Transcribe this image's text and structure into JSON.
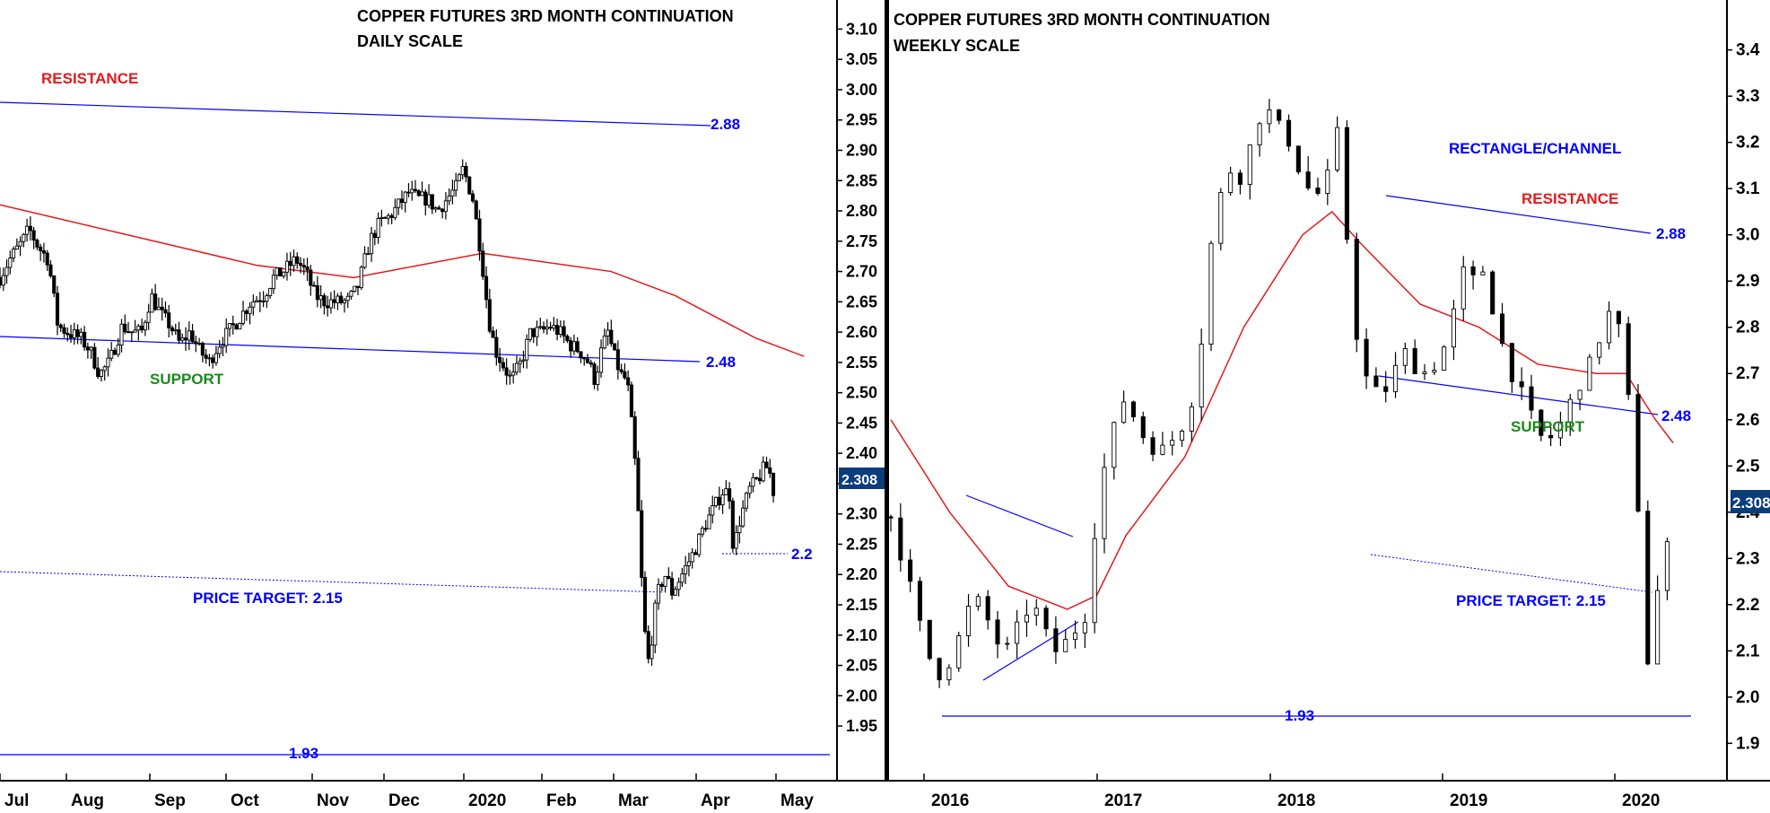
{
  "colors": {
    "up": "#000000",
    "down": "#000000",
    "ma": "#e41a1c",
    "channel": "#0000ff",
    "support": "#1a8a1a",
    "resistance": "#e41a1c",
    "badge": "#0b3d7a"
  },
  "chart_data": [
    {
      "type": "candlestick",
      "title": "COPPER FUTURES 3RD MONTH CONTINUATION",
      "subtitle": "DAILY SCALE",
      "ylim": [
        1.91,
        3.12
      ],
      "y_ticks": [
        "3.10",
        "3.05",
        "3.00",
        "2.95",
        "2.90",
        "2.85",
        "2.80",
        "2.75",
        "2.70",
        "2.65",
        "2.60",
        "2.55",
        "2.50",
        "2.45",
        "2.40",
        "2.35",
        "2.30",
        "2.25",
        "2.20",
        "2.15",
        "2.10",
        "2.05",
        "2.00",
        "1.95"
      ],
      "x_ticks": [
        "Jul",
        "Aug",
        "Sep",
        "Oct",
        "Nov",
        "Dec",
        "2020",
        "Feb",
        "Mar",
        "Apr",
        "May"
      ],
      "last_price": "2.308",
      "price_path": [
        [
          0,
          2.69
        ],
        [
          3,
          2.72
        ],
        [
          7,
          2.75
        ],
        [
          9,
          2.77
        ],
        [
          12,
          2.74
        ],
        [
          15,
          2.72
        ],
        [
          18,
          2.61
        ],
        [
          21,
          2.6
        ],
        [
          25,
          2.59
        ],
        [
          28,
          2.57
        ],
        [
          31,
          2.53
        ],
        [
          34,
          2.55
        ],
        [
          38,
          2.61
        ],
        [
          41,
          2.6
        ],
        [
          44,
          2.6
        ],
        [
          47,
          2.66
        ],
        [
          50,
          2.63
        ],
        [
          53,
          2.61
        ],
        [
          56,
          2.58
        ],
        [
          59,
          2.6
        ],
        [
          62,
          2.57
        ],
        [
          65,
          2.55
        ],
        [
          68,
          2.58
        ],
        [
          71,
          2.6
        ],
        [
          74,
          2.62
        ],
        [
          78,
          2.65
        ],
        [
          82,
          2.66
        ],
        [
          85,
          2.69
        ],
        [
          88,
          2.7
        ],
        [
          92,
          2.72
        ],
        [
          95,
          2.7
        ],
        [
          98,
          2.66
        ],
        [
          101,
          2.65
        ],
        [
          104,
          2.65
        ],
        [
          108,
          2.65
        ],
        [
          111,
          2.67
        ],
        [
          113,
          2.71
        ],
        [
          115,
          2.75
        ],
        [
          118,
          2.78
        ],
        [
          121,
          2.79
        ],
        [
          124,
          2.81
        ],
        [
          127,
          2.83
        ],
        [
          130,
          2.82
        ],
        [
          133,
          2.82
        ],
        [
          136,
          2.8
        ],
        [
          139,
          2.82
        ],
        [
          142,
          2.84
        ],
        [
          144,
          2.87
        ],
        [
          147,
          2.82
        ],
        [
          149,
          2.75
        ],
        [
          150,
          2.71
        ],
        [
          152,
          2.62
        ],
        [
          154,
          2.57
        ],
        [
          156,
          2.55
        ],
        [
          159,
          2.52
        ],
        [
          162,
          2.55
        ],
        [
          165,
          2.6
        ],
        [
          168,
          2.6
        ],
        [
          171,
          2.61
        ],
        [
          174,
          2.6
        ],
        [
          177,
          2.58
        ],
        [
          180,
          2.57
        ],
        [
          183,
          2.55
        ],
        [
          185,
          2.52
        ],
        [
          187,
          2.57
        ],
        [
          189,
          2.6
        ],
        [
          191,
          2.56
        ],
        [
          193,
          2.53
        ],
        [
          195,
          2.52
        ],
        [
          196,
          2.47
        ],
        [
          198,
          2.35
        ],
        [
          199,
          2.24
        ],
        [
          200,
          2.14
        ],
        [
          201,
          2.07
        ],
        [
          202,
          2.05
        ],
        [
          203,
          2.12
        ],
        [
          205,
          2.18
        ],
        [
          207,
          2.2
        ],
        [
          209,
          2.17
        ],
        [
          211,
          2.19
        ],
        [
          213,
          2.21
        ],
        [
          216,
          2.24
        ],
        [
          219,
          2.28
        ],
        [
          222,
          2.31
        ],
        [
          225,
          2.34
        ],
        [
          227,
          2.33
        ],
        [
          228,
          2.24
        ],
        [
          230,
          2.29
        ],
        [
          233,
          2.34
        ],
        [
          236,
          2.36
        ],
        [
          238,
          2.38
        ],
        [
          240,
          2.36
        ],
        [
          241,
          2.31
        ]
      ],
      "ma_path": [
        [
          0,
          2.81
        ],
        [
          40,
          2.76
        ],
        [
          80,
          2.71
        ],
        [
          110,
          2.69
        ],
        [
          150,
          2.73
        ],
        [
          190,
          2.7
        ],
        [
          210,
          2.66
        ],
        [
          235,
          2.59
        ],
        [
          250,
          2.56
        ]
      ],
      "annotations": {
        "resistance_label": "RESISTANCE",
        "support_label": "SUPPORT",
        "resistance_value": "2.88",
        "support_value": "2.48",
        "target_label": "PRICE TARGET: 2.15",
        "level_193": "1.93",
        "level_22": "2.2"
      }
    },
    {
      "type": "candlestick",
      "title": "COPPER FUTURES 3RD MONTH CONTINUATION",
      "subtitle": "WEEKLY SCALE",
      "ylim": [
        1.85,
        3.47
      ],
      "y_ticks": [
        "3.4",
        "3.3",
        "3.2",
        "3.1",
        "3.0",
        "2.9",
        "2.8",
        "2.7",
        "2.6",
        "2.5",
        "2.4",
        "2.3",
        "2.2",
        "2.1",
        "2.0",
        "1.9"
      ],
      "x_ticks": [
        "2016",
        "2017",
        "2018",
        "2019",
        "2020"
      ],
      "last_price": "2.308",
      "price_path": [
        [
          0,
          2.39
        ],
        [
          4,
          2.3
        ],
        [
          8,
          2.2
        ],
        [
          12,
          2.1
        ],
        [
          16,
          2.05
        ],
        [
          20,
          2.08
        ],
        [
          24,
          2.14
        ],
        [
          28,
          2.22
        ],
        [
          32,
          2.18
        ],
        [
          36,
          2.12
        ],
        [
          40,
          2.1
        ],
        [
          44,
          2.16
        ],
        [
          48,
          2.21
        ],
        [
          52,
          2.14
        ],
        [
          56,
          2.1
        ],
        [
          60,
          2.12
        ],
        [
          64,
          2.16
        ],
        [
          68,
          2.2
        ],
        [
          70,
          2.45
        ],
        [
          72,
          2.48
        ],
        [
          76,
          2.58
        ],
        [
          80,
          2.66
        ],
        [
          84,
          2.58
        ],
        [
          88,
          2.55
        ],
        [
          92,
          2.53
        ],
        [
          96,
          2.56
        ],
        [
          100,
          2.6
        ],
        [
          104,
          2.68
        ],
        [
          106,
          2.8
        ],
        [
          108,
          2.95
        ],
        [
          112,
          3.08
        ],
        [
          116,
          3.15
        ],
        [
          120,
          3.12
        ],
        [
          124,
          3.25
        ],
        [
          128,
          3.27
        ],
        [
          132,
          3.23
        ],
        [
          136,
          3.2
        ],
        [
          140,
          3.12
        ],
        [
          144,
          3.08
        ],
        [
          148,
          3.11
        ],
        [
          152,
          3.22
        ],
        [
          154,
          3.05
        ],
        [
          156,
          2.95
        ],
        [
          158,
          2.8
        ],
        [
          162,
          2.68
        ],
        [
          166,
          2.65
        ],
        [
          170,
          2.68
        ],
        [
          174,
          2.75
        ],
        [
          178,
          2.72
        ],
        [
          182,
          2.7
        ],
        [
          186,
          2.73
        ],
        [
          190,
          2.78
        ],
        [
          194,
          2.92
        ],
        [
          198,
          2.9
        ],
        [
          202,
          2.93
        ],
        [
          206,
          2.8
        ],
        [
          210,
          2.72
        ],
        [
          214,
          2.66
        ],
        [
          218,
          2.6
        ],
        [
          222,
          2.55
        ],
        [
          226,
          2.57
        ],
        [
          230,
          2.62
        ],
        [
          234,
          2.68
        ],
        [
          238,
          2.72
        ],
        [
          242,
          2.8
        ],
        [
          246,
          2.85
        ],
        [
          250,
          2.7
        ],
        [
          252,
          2.55
        ],
        [
          254,
          2.42
        ],
        [
          256,
          2.3
        ],
        [
          257,
          2.1
        ],
        [
          258,
          2.05
        ],
        [
          260,
          2.2
        ],
        [
          262,
          2.28
        ],
        [
          264,
          2.32
        ],
        [
          266,
          2.3
        ]
      ],
      "ma_path": [
        [
          0,
          2.6
        ],
        [
          20,
          2.4
        ],
        [
          40,
          2.24
        ],
        [
          60,
          2.19
        ],
        [
          70,
          2.22
        ],
        [
          80,
          2.35
        ],
        [
          100,
          2.52
        ],
        [
          120,
          2.8
        ],
        [
          140,
          3.0
        ],
        [
          150,
          3.05
        ],
        [
          160,
          2.98
        ],
        [
          180,
          2.85
        ],
        [
          200,
          2.8
        ],
        [
          220,
          2.72
        ],
        [
          240,
          2.7
        ],
        [
          250,
          2.7
        ],
        [
          260,
          2.6
        ],
        [
          266,
          2.55
        ]
      ],
      "annotations": {
        "channel_label": "RECTANGLE/CHANNEL",
        "resistance_label": "RESISTANCE",
        "support_label": "SUPPORT",
        "resistance_value": "2.88",
        "support_value": "2.48",
        "target_label": "PRICE TARGET: 2.15",
        "level_193": "1.93"
      }
    }
  ]
}
